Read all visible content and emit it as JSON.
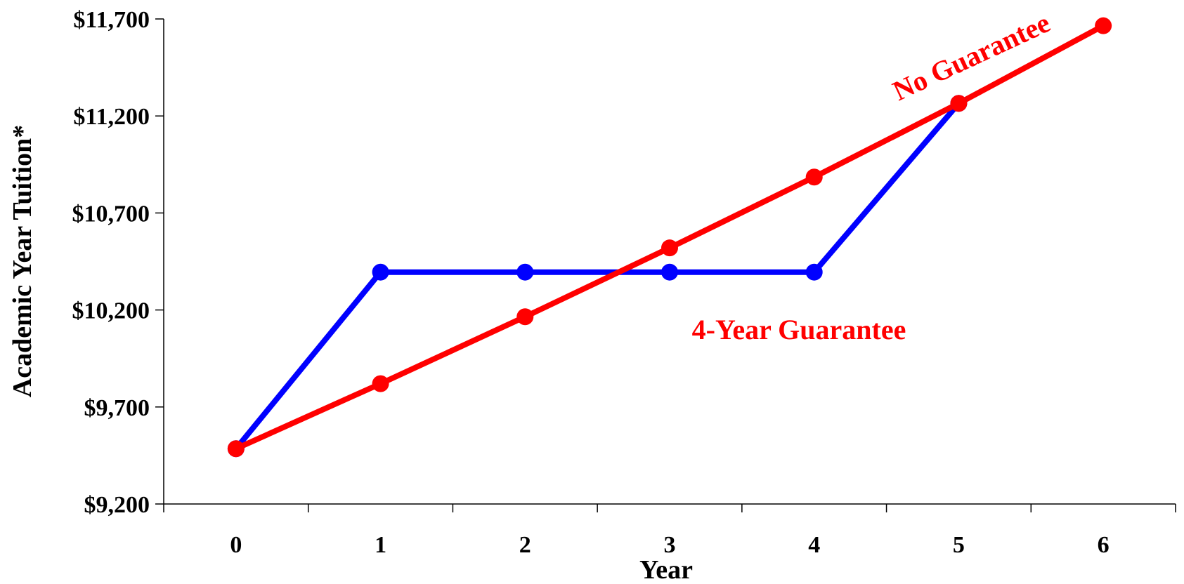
{
  "chart_data": {
    "type": "line",
    "title": "",
    "xlabel": "Year",
    "ylabel": "Academic Year Tuition*",
    "x": [
      0,
      1,
      2,
      3,
      4,
      5,
      6
    ],
    "x_tick_labels": [
      "0",
      "1",
      "2",
      "3",
      "4",
      "5",
      "6"
    ],
    "xlim": [
      -0.5,
      6.5
    ],
    "ylim": [
      9200,
      11700
    ],
    "y_ticks": [
      9200,
      9700,
      10200,
      10700,
      11200,
      11700
    ],
    "y_tick_labels": [
      "$9,200",
      "$9,700",
      "$10,200",
      "$10,700",
      "$11,200",
      "$11,700"
    ],
    "grid": false,
    "legend": "none",
    "series": [
      {
        "key": "no_guarantee",
        "color": "#ff0000",
        "x": [
          0,
          1,
          2,
          3,
          4,
          5,
          6
        ],
        "values": [
          9485,
          9820,
          10165,
          10520,
          10885,
          11265,
          11665
        ]
      },
      {
        "key": "four_year_guarantee",
        "color": "#0000ff",
        "x": [
          0,
          1,
          2,
          3,
          4,
          5
        ],
        "values": [
          9485,
          10395,
          10395,
          10395,
          10395,
          11265
        ]
      }
    ],
    "annotations": [
      {
        "key": "no_guarantee_label",
        "text": "No Guarantee",
        "color": "#ff0000"
      },
      {
        "key": "four_year_label",
        "text": "4-Year Guarantee",
        "color": "#ff0000"
      }
    ]
  }
}
